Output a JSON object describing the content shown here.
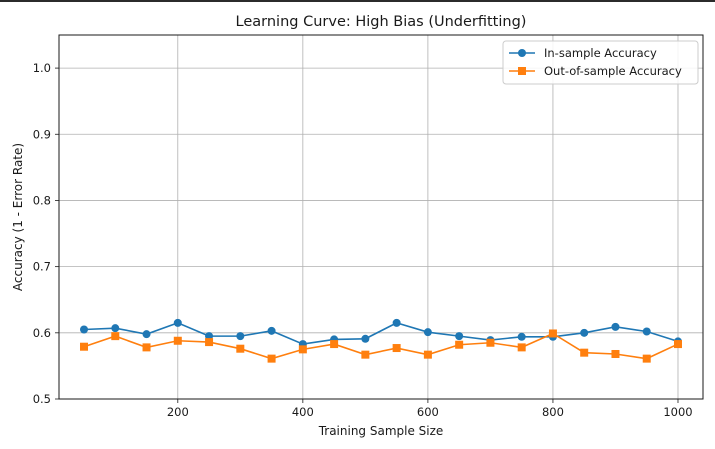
{
  "chart_data": {
    "type": "line",
    "title": "Learning Curve: High Bias (Underfitting)",
    "xlabel": "Training Sample Size",
    "ylabel": "Accuracy (1 - Error Rate)",
    "xlim": [
      10,
      1040
    ],
    "ylim": [
      0.5,
      1.05
    ],
    "xticks": [
      200,
      400,
      600,
      800,
      1000
    ],
    "yticks": [
      0.5,
      0.6,
      0.7,
      0.8,
      0.9,
      1.0
    ],
    "ytick_labels": [
      "0.5",
      "0.6",
      "0.7",
      "0.8",
      "0.9",
      "1.0"
    ],
    "grid": true,
    "legend_position": "top-right",
    "x": [
      50,
      100,
      150,
      200,
      250,
      300,
      350,
      400,
      450,
      500,
      550,
      600,
      650,
      700,
      750,
      800,
      850,
      900,
      950,
      1000
    ],
    "series": [
      {
        "name": "In-sample Accuracy",
        "color": "#1f77b4",
        "marker": "circle",
        "values": [
          0.605,
          0.607,
          0.598,
          0.615,
          0.595,
          0.595,
          0.603,
          0.583,
          0.59,
          0.591,
          0.615,
          0.601,
          0.595,
          0.589,
          0.594,
          0.594,
          0.6,
          0.609,
          0.602,
          0.587
        ]
      },
      {
        "name": "Out-of-sample Accuracy",
        "color": "#ff7f0e",
        "marker": "square",
        "values": [
          0.579,
          0.595,
          0.578,
          0.588,
          0.586,
          0.576,
          0.561,
          0.575,
          0.583,
          0.567,
          0.577,
          0.567,
          0.582,
          0.585,
          0.578,
          0.599,
          0.57,
          0.568,
          0.561,
          0.583
        ]
      }
    ]
  }
}
